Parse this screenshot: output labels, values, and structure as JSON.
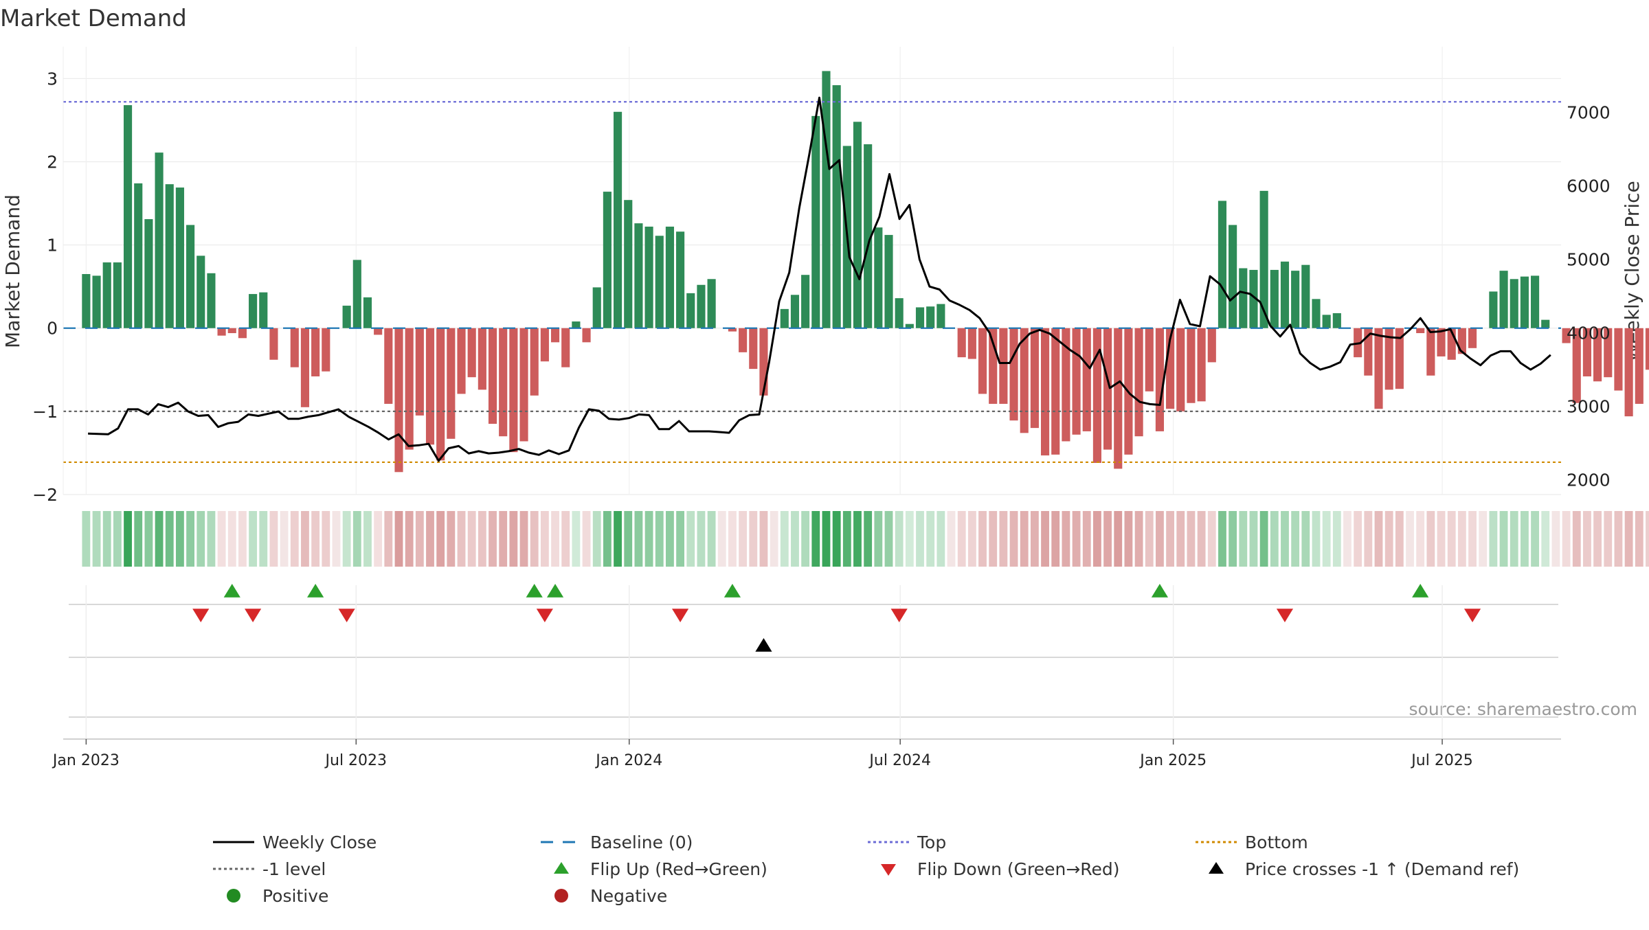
{
  "chart_data": {
    "type": "bar",
    "title": "Market Demand",
    "ylabel_left": "Market Demand",
    "ylabel_right": "Weekly Close Price",
    "source": "source: sharemaestro.com",
    "ylim_left": [
      -2.0,
      3.3
    ],
    "ylim_right": [
      1800,
      7800
    ],
    "left_ticks": [
      3,
      2,
      1,
      0,
      -1,
      -2
    ],
    "left_tick_labels": [
      "3",
      "2",
      "1",
      "0",
      "−1",
      "−2"
    ],
    "right_ticks": [
      7000,
      6000,
      5000,
      4000,
      3000,
      2000
    ],
    "right_tick_labels": [
      "7000",
      "6000",
      "5000",
      "4000",
      "3000",
      "2000"
    ],
    "x_tick_labels": [
      "Jan 2023",
      "Jul 2023",
      "Jan 2024",
      "Jul 2024",
      "Jan 2025",
      "Jul 2025"
    ],
    "x_tick_weeks": [
      0.0,
      25.9,
      52.1,
      78.1,
      104.3,
      130.1
    ],
    "week_range": [
      -2.2,
      141.5
    ],
    "reference_lines": {
      "top": 2.72,
      "minus_one": -1.0,
      "bottom_price": 2240
    },
    "series": [
      {
        "name": "Market Demand",
        "values": [
          0.65,
          0.63,
          0.79,
          0.79,
          2.68,
          1.74,
          1.31,
          2.11,
          1.73,
          1.69,
          1.24,
          0.87,
          0.66,
          -0.09,
          -0.06,
          -0.12,
          0.41,
          0.43,
          -0.38,
          0.0,
          -0.47,
          -0.95,
          -0.58,
          -0.52,
          0.0,
          0.27,
          0.82,
          0.37,
          -0.08,
          -0.91,
          -1.73,
          -1.46,
          -1.05,
          -1.4,
          -1.59,
          -1.33,
          -0.79,
          -0.59,
          -0.74,
          -1.15,
          -1.3,
          -1.49,
          -1.36,
          -0.81,
          -0.4,
          -0.17,
          -0.47,
          0.08,
          -0.17,
          0.49,
          1.64,
          2.6,
          1.54,
          1.26,
          1.22,
          1.11,
          1.22,
          1.16,
          0.42,
          0.52,
          0.59,
          0.0,
          -0.04,
          -0.29,
          -0.49,
          -0.81,
          0.0,
          0.23,
          0.4,
          0.64,
          2.55,
          3.09,
          2.92,
          2.19,
          2.48,
          2.21,
          1.21,
          1.12,
          0.36,
          0.05,
          0.25,
          0.26,
          0.29,
          0.0,
          -0.35,
          -0.37,
          -0.79,
          -0.91,
          -0.91,
          -1.11,
          -1.26,
          -1.2,
          -1.53,
          -1.52,
          -1.36,
          -1.28,
          -1.24,
          -1.62,
          -1.46,
          -1.69,
          -1.52,
          -1.3,
          -0.76,
          -1.24,
          -0.97,
          -1.0,
          -0.9,
          -0.88,
          -0.41,
          1.53,
          1.24,
          0.72,
          0.7,
          1.65,
          0.7,
          0.8,
          0.69,
          0.76,
          0.35,
          0.16,
          0.18,
          0.0,
          -0.35,
          -0.57,
          -0.97,
          -0.74,
          -0.73,
          0.0,
          -0.06,
          -0.57,
          -0.34,
          -0.38,
          -0.31,
          -0.24,
          0.0,
          0.44,
          0.69,
          0.59,
          0.62,
          0.63,
          0.1,
          0.0,
          -0.18,
          -0.9,
          -0.58,
          -0.64,
          -0.59,
          -0.75,
          -1.06,
          -0.91,
          -0.5
        ]
      },
      {
        "name": "Weekly Close",
        "week_start": 0.18,
        "week_end": 140.5,
        "points": [
          2630,
          2625,
          2620,
          2700,
          2960,
          2960,
          2890,
          3030,
          2990,
          3050,
          2930,
          2870,
          2880,
          2720,
          2770,
          2790,
          2890,
          2870,
          2900,
          2930,
          2830,
          2830,
          2860,
          2880,
          2920,
          2960,
          2860,
          2790,
          2720,
          2640,
          2550,
          2620,
          2460,
          2470,
          2490,
          2260,
          2430,
          2460,
          2360,
          2390,
          2360,
          2370,
          2390,
          2420,
          2370,
          2340,
          2400,
          2350,
          2400,
          2710,
          2960,
          2940,
          2830,
          2820,
          2840,
          2890,
          2880,
          2690,
          2690,
          2800,
          2660,
          2660,
          2660,
          2650,
          2640,
          2810,
          2880,
          2890,
          3610,
          4430,
          4820,
          5700,
          6430,
          7200,
          6230,
          6350,
          5030,
          4730,
          5260,
          5580,
          6160,
          5550,
          5740,
          5000,
          4630,
          4590,
          4440,
          4380,
          4310,
          4200,
          4000,
          3590,
          3590,
          3850,
          3990,
          4040,
          3990,
          3880,
          3770,
          3680,
          3520,
          3770,
          3250,
          3340,
          3170,
          3060,
          3030,
          3020,
          3910,
          4450,
          4120,
          4090,
          4770,
          4660,
          4440,
          4560,
          4530,
          4420,
          4100,
          3950,
          4110,
          3720,
          3590,
          3500,
          3540,
          3600,
          3840,
          3860,
          3990,
          3960,
          3940,
          3930,
          4050,
          4200,
          4010,
          4020,
          4050,
          3760,
          3650,
          3560,
          3690,
          3750,
          3750,
          3590,
          3500,
          3580,
          3700
        ]
      }
    ],
    "flip_up_weeks": [
      14.0,
      22.0,
      43.0,
      45.0,
      62.0,
      103.0,
      128.0
    ],
    "flip_down_weeks": [
      11.0,
      16.0,
      25.0,
      44.0,
      57.0,
      78.0,
      115.0,
      133.0
    ],
    "price_cross_weeks": [
      65.0
    ],
    "legend": [
      "Weekly Close",
      "Baseline (0)",
      "Top",
      "Bottom",
      "-1 level",
      "Flip Up (Red→Green)",
      "Flip Down (Green→Red)",
      "Price crosses -1 ↑ (Demand ref)",
      "Positive",
      "Negative"
    ],
    "colors": {
      "positive_bar": "#2e8b57",
      "negative_bar": "#cd5c5c",
      "price_line": "#000000",
      "baseline": "#1f77b4",
      "top": "#6b6bd6",
      "minus_one": "#666666",
      "bottom": "#d08a00",
      "flip_up": "#2ca02c",
      "flip_down": "#d62728",
      "cross": "#000000",
      "positive_dot": "#228b22",
      "negative_dot": "#b22222",
      "source_text": "#999999",
      "text": "#333333"
    }
  }
}
